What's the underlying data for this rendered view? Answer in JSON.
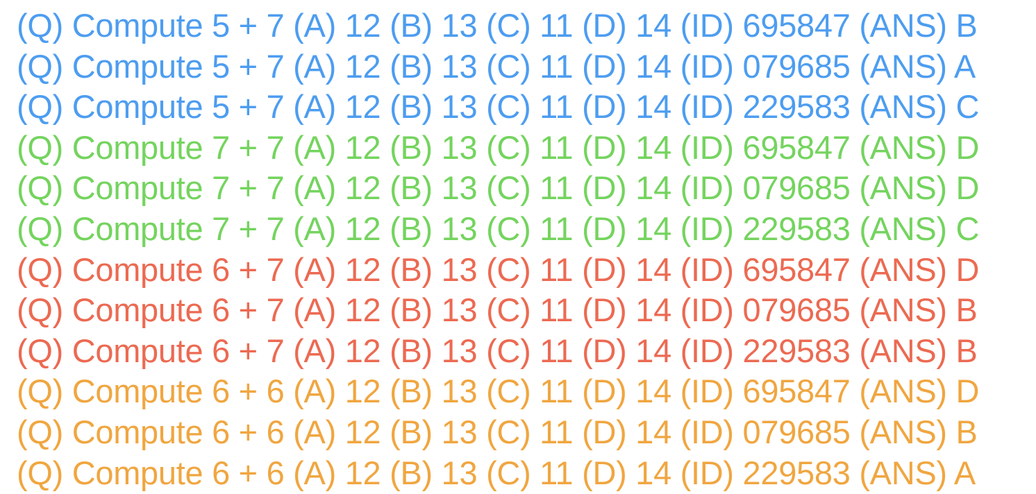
{
  "palette": {
    "blue": "#4d9df0",
    "green": "#74d45e",
    "red": "#ec6a52",
    "orange": "#f0a640",
    "background": "#ffffff"
  },
  "labels": {
    "question": "(Q)",
    "option_a": "(A)",
    "option_b": "(B)",
    "option_c": "(C)",
    "option_d": "(D)",
    "id": "(ID)",
    "answer": "(ANS)"
  },
  "lines": [
    {
      "color": "#4d9df0",
      "question": "Compute 5 + 7",
      "option_a": "12",
      "option_b": "13",
      "option_c": "11",
      "option_d": "14",
      "id": "695847",
      "answer": "B",
      "text": "(Q) Compute 5 + 7 (A) 12 (B) 13 (C) 11 (D) 14 (ID) 695847 (ANS) B"
    },
    {
      "color": "#4d9df0",
      "question": "Compute 5 + 7",
      "option_a": "12",
      "option_b": "13",
      "option_c": "11",
      "option_d": "14",
      "id": "079685",
      "answer": "A",
      "text": "(Q) Compute 5 + 7 (A) 12 (B) 13 (C) 11 (D) 14 (ID) 079685 (ANS) A"
    },
    {
      "color": "#4d9df0",
      "question": "Compute 5 + 7",
      "option_a": "12",
      "option_b": "13",
      "option_c": "11",
      "option_d": "14",
      "id": "229583",
      "answer": "C",
      "text": "(Q) Compute 5 + 7 (A) 12 (B) 13 (C) 11 (D) 14 (ID) 229583 (ANS) C"
    },
    {
      "color": "#74d45e",
      "question": "Compute 7 + 7",
      "option_a": "12",
      "option_b": "13",
      "option_c": "11",
      "option_d": "14",
      "id": "695847",
      "answer": "D",
      "text": "(Q) Compute 7 + 7 (A) 12 (B) 13 (C) 11 (D) 14 (ID) 695847 (ANS) D"
    },
    {
      "color": "#74d45e",
      "question": "Compute 7 + 7",
      "option_a": "12",
      "option_b": "13",
      "option_c": "11",
      "option_d": "14",
      "id": "079685",
      "answer": "D",
      "text": "(Q) Compute 7 + 7 (A) 12 (B) 13 (C) 11 (D) 14 (ID) 079685 (ANS) D"
    },
    {
      "color": "#74d45e",
      "question": "Compute 7 + 7",
      "option_a": "12",
      "option_b": "13",
      "option_c": "11",
      "option_d": "14",
      "id": "229583",
      "answer": "C",
      "text": "(Q) Compute 7 + 7 (A) 12 (B) 13 (C) 11 (D) 14 (ID) 229583 (ANS) C"
    },
    {
      "color": "#ec6a52",
      "question": "Compute 6 + 7",
      "option_a": "12",
      "option_b": "13",
      "option_c": "11",
      "option_d": "14",
      "id": "695847",
      "answer": "D",
      "text": "(Q) Compute 6 + 7 (A) 12 (B) 13 (C) 11 (D) 14 (ID) 695847 (ANS) D"
    },
    {
      "color": "#ec6a52",
      "question": "Compute 6 + 7",
      "option_a": "12",
      "option_b": "13",
      "option_c": "11",
      "option_d": "14",
      "id": "079685",
      "answer": "B",
      "text": "(Q) Compute 6 + 7 (A) 12 (B) 13 (C) 11 (D) 14 (ID) 079685 (ANS) B"
    },
    {
      "color": "#ec6a52",
      "question": "Compute 6 + 7",
      "option_a": "12",
      "option_b": "13",
      "option_c": "11",
      "option_d": "14",
      "id": "229583",
      "answer": "B",
      "text": "(Q) Compute 6 + 7 (A) 12 (B) 13 (C) 11 (D) 14 (ID) 229583 (ANS) B"
    },
    {
      "color": "#f0a640",
      "question": "Compute 6 + 6",
      "option_a": "12",
      "option_b": "13",
      "option_c": "11",
      "option_d": "14",
      "id": "695847",
      "answer": "D",
      "text": "(Q) Compute 6 + 6 (A) 12 (B) 13 (C) 11 (D) 14 (ID) 695847 (ANS) D"
    },
    {
      "color": "#f0a640",
      "question": "Compute 6 + 6",
      "option_a": "12",
      "option_b": "13",
      "option_c": "11",
      "option_d": "14",
      "id": "079685",
      "answer": "B",
      "text": "(Q) Compute 6 + 6 (A) 12 (B) 13 (C) 11 (D) 14 (ID) 079685 (ANS) B"
    },
    {
      "color": "#f0a640",
      "question": "Compute 6 + 6",
      "option_a": "12",
      "option_b": "13",
      "option_c": "11",
      "option_d": "14",
      "id": "229583",
      "answer": "A",
      "text": "(Q) Compute 6 + 6 (A) 12 (B) 13 (C) 11 (D) 14 (ID) 229583 (ANS) A"
    }
  ]
}
